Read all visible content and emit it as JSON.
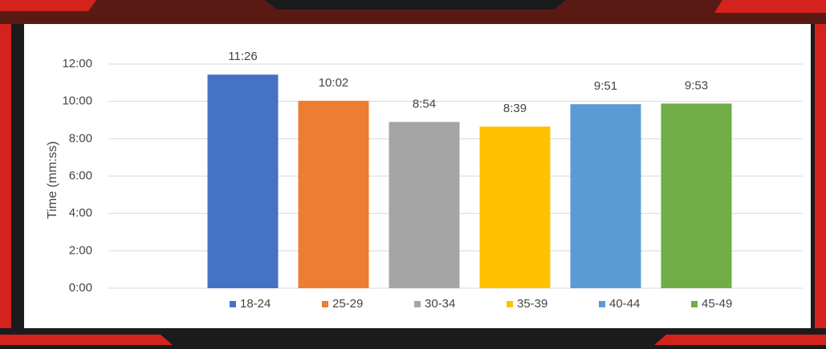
{
  "chart_data": {
    "type": "bar",
    "y_label": "Time (mm:ss)",
    "categories": [
      "18-24",
      "25-29",
      "30-34",
      "35-39",
      "40-44",
      "45-49"
    ],
    "values": [
      11.4333,
      10.0333,
      8.9,
      8.65,
      9.85,
      9.8833
    ],
    "value_labels": [
      "11:26",
      "10:02",
      "8:54",
      "8:39",
      "9:51",
      "9:53"
    ],
    "colors": [
      "#4472c4",
      "#ed7d31",
      "#a5a5a5",
      "#ffc000",
      "#5b9bd5",
      "#70ad47"
    ],
    "ylim": [
      0,
      12
    ],
    "yticks": [
      {
        "value": 0,
        "label": "0:00"
      },
      {
        "value": 2,
        "label": "2:00"
      },
      {
        "value": 4,
        "label": "4:00"
      },
      {
        "value": 6,
        "label": "6:00"
      },
      {
        "value": 8,
        "label": "8:00"
      },
      {
        "value": 10,
        "label": "10:00"
      },
      {
        "value": 12,
        "label": "12:00"
      }
    ],
    "grid": true,
    "legend": "bottom"
  }
}
